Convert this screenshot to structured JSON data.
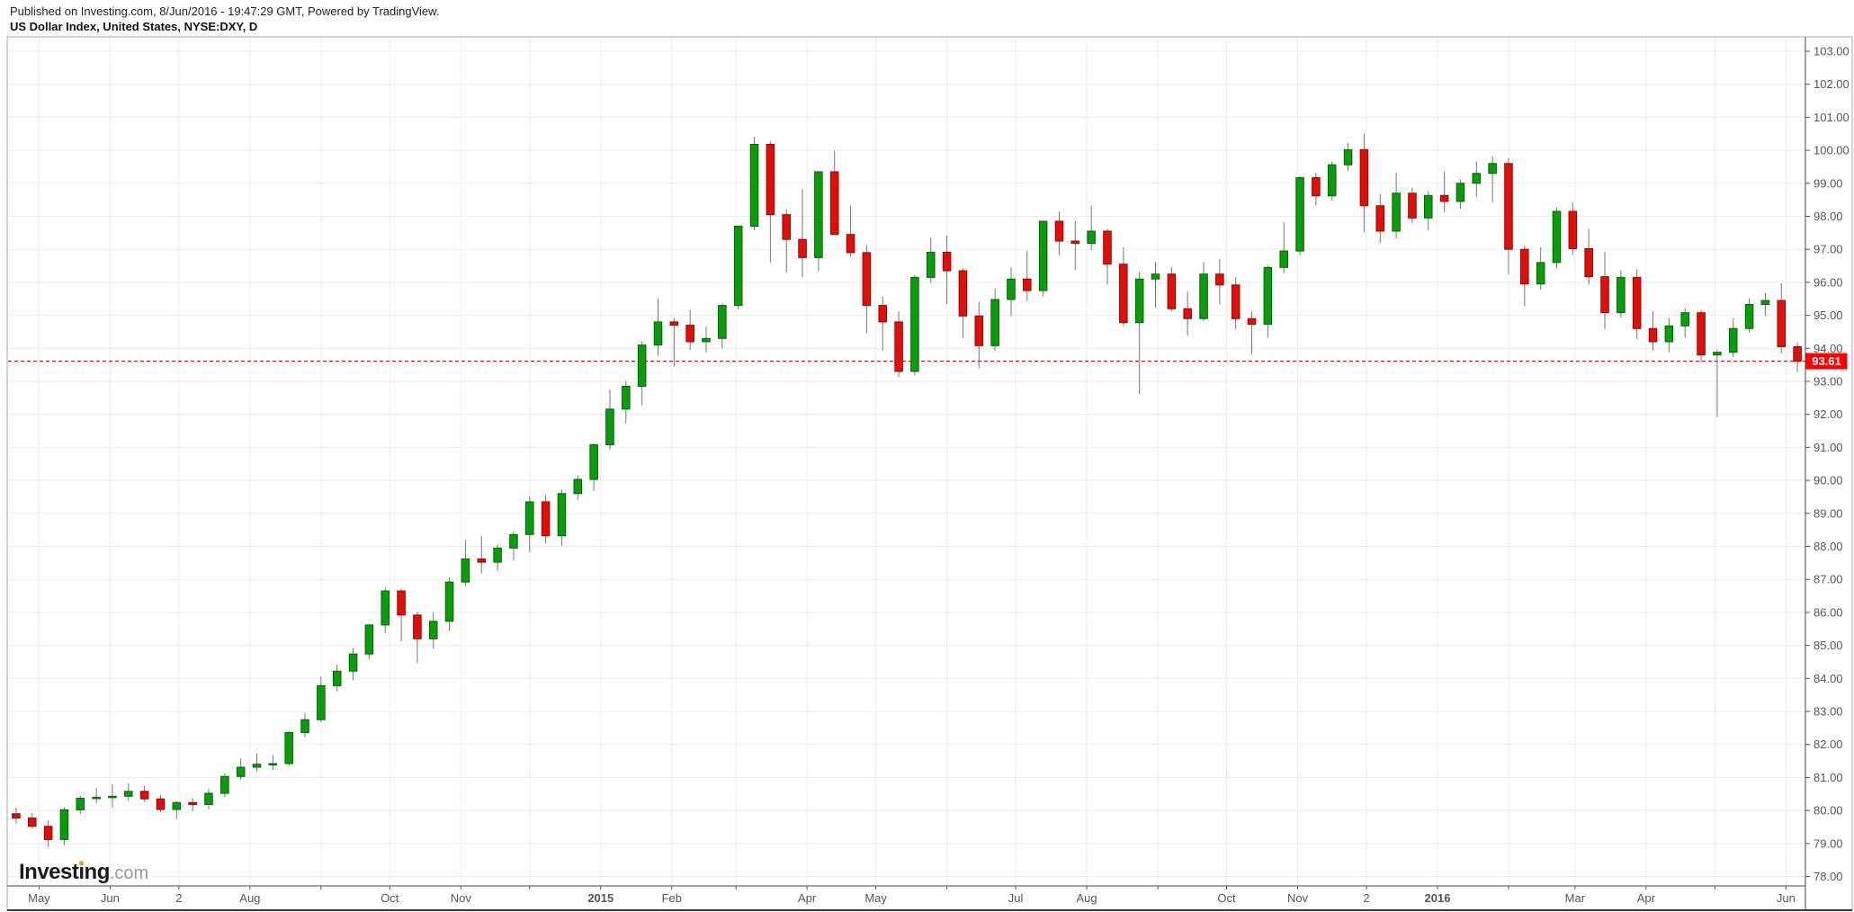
{
  "header": {
    "published_line": "Published on Investing.com, 8/Jun/2016 - 19:47:29 GMT, Powered by TradingView.",
    "instrument_line": "US Dollar Index, United States, NYSE:DXY, D"
  },
  "watermark": {
    "pre": "Invest",
    "i": "i",
    "post": "ng",
    "suffix": ".com"
  },
  "price_axis": {
    "ticks": [
      "103.00",
      "102.00",
      "101.00",
      "100.00",
      "99.00",
      "98.00",
      "97.00",
      "96.00",
      "95.00",
      "94.00",
      "93.00",
      "92.00",
      "91.00",
      "90.00",
      "89.00",
      "88.00",
      "87.00",
      "86.00",
      "85.00",
      "84.00",
      "83.00",
      "82.00",
      "81.00",
      "80.00",
      "79.00",
      "78.00"
    ],
    "min": 78,
    "max": 103,
    "step": 1
  },
  "last_price": {
    "label": "93.61",
    "value": 93.61
  },
  "time_axis": {
    "months": [
      {
        "d": "2014-05-01",
        "label": "May",
        "bold": false
      },
      {
        "d": "2014-06-01",
        "label": "Jun",
        "bold": false
      },
      {
        "d": "2014-07-01",
        "label": "2",
        "bold": false
      },
      {
        "d": "2014-08-01",
        "label": "Aug",
        "bold": false
      },
      {
        "d": "2014-09-01",
        "label": "",
        "bold": false
      },
      {
        "d": "2014-10-01",
        "label": "Oct",
        "bold": false
      },
      {
        "d": "2014-11-01",
        "label": "Nov",
        "bold": false
      },
      {
        "d": "2014-12-01",
        "label": "",
        "bold": false
      },
      {
        "d": "2015-01-01",
        "label": "2015",
        "bold": true
      },
      {
        "d": "2015-02-01",
        "label": "Feb",
        "bold": false
      },
      {
        "d": "2015-03-01",
        "label": "",
        "bold": false
      },
      {
        "d": "2015-04-01",
        "label": "Apr",
        "bold": false
      },
      {
        "d": "2015-05-01",
        "label": "May",
        "bold": false
      },
      {
        "d": "2015-06-01",
        "label": "",
        "bold": false
      },
      {
        "d": "2015-07-01",
        "label": "Jul",
        "bold": false
      },
      {
        "d": "2015-08-01",
        "label": "Aug",
        "bold": false
      },
      {
        "d": "2015-09-01",
        "label": "",
        "bold": false
      },
      {
        "d": "2015-10-01",
        "label": "Oct",
        "bold": false
      },
      {
        "d": "2015-11-01",
        "label": "Nov",
        "bold": false
      },
      {
        "d": "2015-12-01",
        "label": "2",
        "bold": false
      },
      {
        "d": "2016-01-01",
        "label": "2016",
        "bold": true
      },
      {
        "d": "2016-02-01",
        "label": "",
        "bold": false
      },
      {
        "d": "2016-03-01",
        "label": "Mar",
        "bold": false
      },
      {
        "d": "2016-04-01",
        "label": "Apr",
        "bold": false
      },
      {
        "d": "2016-05-01",
        "label": "",
        "bold": false
      },
      {
        "d": "2016-06-01",
        "label": "Jun",
        "bold": false
      }
    ]
  },
  "colors": {
    "background": "#ffffff",
    "grid": "#ececec",
    "axis_line": "#4a4a4a",
    "frame": "#a9a9a9",
    "axis_text": "#565656",
    "up_fill": "#0b9c0b",
    "up_stroke": "#056605",
    "down_fill": "#e01008",
    "down_stroke": "#8f0a04",
    "wick": "#777777",
    "last_price_bg": "#ff0000",
    "last_price_text": "#ffffff",
    "dashed_line": "#ff0000",
    "logo_dot": "#f49d25"
  },
  "chart_data": {
    "type": "candlestick",
    "title": "US Dollar Index, United States, NYSE:DXY, D",
    "symbol": "NYSE:DXY",
    "timeframe_shown": "daily bars, Apr 2014 - 8 Jun 2016 (values estimated at weekly resolution)",
    "x_start": "2014-04-21",
    "x_end": "2016-06-08",
    "ylim": [
      77.7,
      103.2
    ],
    "y_gridlines": "every 1.00",
    "last_close": 93.61,
    "columns": [
      "week_start",
      "open",
      "high",
      "low",
      "close"
    ],
    "rows": [
      [
        "2014-04-21",
        79.9,
        80.08,
        79.6,
        79.77
      ],
      [
        "2014-04-28",
        79.77,
        79.92,
        79.45,
        79.52
      ],
      [
        "2014-05-05",
        79.52,
        79.7,
        78.9,
        79.12
      ],
      [
        "2014-05-12",
        79.12,
        80.1,
        78.95,
        80.02
      ],
      [
        "2014-05-19",
        80.02,
        80.44,
        79.88,
        80.37
      ],
      [
        "2014-05-26",
        80.37,
        80.68,
        80.22,
        80.4
      ],
      [
        "2014-06-02",
        80.4,
        80.8,
        80.08,
        80.43
      ],
      [
        "2014-06-09",
        80.43,
        80.82,
        80.3,
        80.58
      ],
      [
        "2014-06-16",
        80.58,
        80.75,
        80.26,
        80.35
      ],
      [
        "2014-06-23",
        80.35,
        80.48,
        79.95,
        80.03
      ],
      [
        "2014-06-30",
        80.03,
        80.28,
        79.74,
        80.24
      ],
      [
        "2014-07-07",
        80.24,
        80.38,
        79.98,
        80.18
      ],
      [
        "2014-07-14",
        80.18,
        80.66,
        80.04,
        80.52
      ],
      [
        "2014-07-21",
        80.52,
        81.12,
        80.4,
        81.03
      ],
      [
        "2014-07-28",
        81.03,
        81.58,
        80.93,
        81.31
      ],
      [
        "2014-08-04",
        81.31,
        81.72,
        81.18,
        81.4
      ],
      [
        "2014-08-11",
        81.4,
        81.68,
        81.22,
        81.42
      ],
      [
        "2014-08-18",
        81.42,
        82.4,
        81.36,
        82.36
      ],
      [
        "2014-08-25",
        82.36,
        82.94,
        82.22,
        82.75
      ],
      [
        "2014-09-01",
        82.75,
        84.05,
        82.68,
        83.78
      ],
      [
        "2014-09-08",
        83.78,
        84.42,
        83.6,
        84.22
      ],
      [
        "2014-09-15",
        84.22,
        84.92,
        83.94,
        84.74
      ],
      [
        "2014-09-22",
        84.74,
        85.66,
        84.58,
        85.62
      ],
      [
        "2014-09-29",
        85.62,
        86.75,
        85.38,
        86.65
      ],
      [
        "2014-10-06",
        86.65,
        86.72,
        85.12,
        85.92
      ],
      [
        "2014-10-13",
        85.92,
        86.02,
        84.47,
        85.2
      ],
      [
        "2014-10-20",
        85.2,
        86.0,
        84.9,
        85.73
      ],
      [
        "2014-10-27",
        85.73,
        87.06,
        85.44,
        86.92
      ],
      [
        "2014-11-03",
        86.92,
        88.19,
        86.78,
        87.62
      ],
      [
        "2014-11-10",
        87.62,
        88.32,
        87.18,
        87.52
      ],
      [
        "2014-11-17",
        87.52,
        88.06,
        87.26,
        87.95
      ],
      [
        "2014-11-24",
        87.95,
        88.46,
        87.58,
        88.36
      ],
      [
        "2014-12-01",
        88.36,
        89.52,
        87.82,
        89.35
      ],
      [
        "2014-12-08",
        89.35,
        89.56,
        88.08,
        88.32
      ],
      [
        "2014-12-15",
        88.32,
        89.72,
        88.02,
        89.6
      ],
      [
        "2014-12-22",
        89.6,
        90.16,
        89.42,
        90.03
      ],
      [
        "2014-12-29",
        90.03,
        91.12,
        89.68,
        91.08
      ],
      [
        "2015-01-05",
        91.08,
        92.76,
        90.92,
        92.16
      ],
      [
        "2015-01-12",
        92.16,
        93.02,
        91.72,
        92.85
      ],
      [
        "2015-01-19",
        92.85,
        94.22,
        92.28,
        94.1
      ],
      [
        "2015-01-26",
        94.1,
        95.52,
        93.78,
        94.8
      ],
      [
        "2015-02-02",
        94.8,
        94.92,
        93.45,
        94.7
      ],
      [
        "2015-02-09",
        94.7,
        95.16,
        93.95,
        94.2
      ],
      [
        "2015-02-16",
        94.2,
        94.66,
        93.88,
        94.3
      ],
      [
        "2015-02-23",
        94.3,
        95.36,
        94.0,
        95.3
      ],
      [
        "2015-03-02",
        95.3,
        97.72,
        95.18,
        97.7
      ],
      [
        "2015-03-09",
        97.7,
        100.4,
        97.58,
        100.18
      ],
      [
        "2015-03-16",
        100.18,
        100.28,
        96.6,
        98.05
      ],
      [
        "2015-03-23",
        98.05,
        98.22,
        96.3,
        97.3
      ],
      [
        "2015-03-30",
        97.3,
        98.82,
        96.15,
        96.75
      ],
      [
        "2015-04-06",
        96.75,
        99.32,
        96.33,
        99.35
      ],
      [
        "2015-04-13",
        99.35,
        99.99,
        97.58,
        97.45
      ],
      [
        "2015-04-20",
        97.45,
        98.32,
        96.78,
        96.9
      ],
      [
        "2015-04-27",
        96.9,
        97.12,
        94.45,
        95.3
      ],
      [
        "2015-05-04",
        95.3,
        95.56,
        93.93,
        94.8
      ],
      [
        "2015-05-11",
        94.8,
        95.12,
        93.13,
        93.3
      ],
      [
        "2015-05-18",
        93.3,
        96.22,
        93.18,
        96.15
      ],
      [
        "2015-05-25",
        96.15,
        97.36,
        95.98,
        96.91
      ],
      [
        "2015-06-01",
        96.91,
        97.42,
        95.35,
        96.35
      ],
      [
        "2015-06-08",
        96.35,
        96.42,
        94.3,
        94.98
      ],
      [
        "2015-06-15",
        94.98,
        95.42,
        93.4,
        94.08
      ],
      [
        "2015-06-22",
        94.08,
        95.82,
        93.93,
        95.48
      ],
      [
        "2015-06-29",
        95.48,
        96.46,
        94.98,
        96.1
      ],
      [
        "2015-07-06",
        96.1,
        96.96,
        95.44,
        95.75
      ],
      [
        "2015-07-13",
        95.75,
        97.86,
        95.58,
        97.85
      ],
      [
        "2015-07-20",
        97.85,
        98.15,
        96.83,
        97.25
      ],
      [
        "2015-07-27",
        97.25,
        97.86,
        96.38,
        97.18
      ],
      [
        "2015-08-03",
        97.18,
        98.32,
        96.98,
        97.55
      ],
      [
        "2015-08-10",
        97.55,
        97.62,
        95.93,
        96.55
      ],
      [
        "2015-08-17",
        96.55,
        97.06,
        94.68,
        94.78
      ],
      [
        "2015-08-24",
        94.78,
        96.32,
        92.62,
        96.1
      ],
      [
        "2015-08-31",
        96.1,
        96.62,
        95.23,
        96.25
      ],
      [
        "2015-09-07",
        96.25,
        96.46,
        95.12,
        95.2
      ],
      [
        "2015-09-14",
        95.2,
        95.72,
        94.38,
        94.9
      ],
      [
        "2015-09-21",
        94.9,
        96.62,
        94.83,
        96.25
      ],
      [
        "2015-09-28",
        96.25,
        96.7,
        95.33,
        95.92
      ],
      [
        "2015-10-05",
        95.92,
        96.16,
        94.58,
        94.9
      ],
      [
        "2015-10-12",
        94.9,
        95.12,
        93.81,
        94.73
      ],
      [
        "2015-10-19",
        94.73,
        96.52,
        94.33,
        96.45
      ],
      [
        "2015-10-26",
        96.45,
        97.82,
        96.28,
        96.95
      ],
      [
        "2015-11-02",
        96.95,
        99.22,
        96.83,
        99.17
      ],
      [
        "2015-11-09",
        99.17,
        99.32,
        98.33,
        98.62
      ],
      [
        "2015-11-16",
        98.62,
        99.66,
        98.48,
        99.56
      ],
      [
        "2015-11-23",
        99.56,
        100.22,
        99.38,
        100.02
      ],
      [
        "2015-11-30",
        100.02,
        100.51,
        97.53,
        98.32
      ],
      [
        "2015-12-07",
        98.32,
        98.66,
        97.18,
        97.55
      ],
      [
        "2015-12-14",
        97.55,
        99.32,
        97.33,
        98.7
      ],
      [
        "2015-12-21",
        98.7,
        98.86,
        97.78,
        97.95
      ],
      [
        "2015-12-28",
        97.95,
        98.76,
        97.58,
        98.63
      ],
      [
        "2016-01-04",
        98.63,
        99.36,
        98.13,
        98.45
      ],
      [
        "2016-01-11",
        98.45,
        99.12,
        98.23,
        99.0
      ],
      [
        "2016-01-18",
        99.0,
        99.66,
        98.58,
        99.3
      ],
      [
        "2016-01-25",
        99.3,
        99.82,
        98.43,
        99.6
      ],
      [
        "2016-02-01",
        99.6,
        99.76,
        96.25,
        97.0
      ],
      [
        "2016-02-08",
        97.0,
        97.12,
        95.27,
        95.95
      ],
      [
        "2016-02-15",
        95.95,
        97.06,
        95.78,
        96.6
      ],
      [
        "2016-02-22",
        96.6,
        98.26,
        96.43,
        98.15
      ],
      [
        "2016-02-29",
        98.15,
        98.42,
        96.83,
        97.02
      ],
      [
        "2016-03-07",
        97.02,
        97.62,
        95.93,
        96.17
      ],
      [
        "2016-03-14",
        96.17,
        96.92,
        94.58,
        95.08
      ],
      [
        "2016-03-21",
        95.08,
        96.36,
        94.93,
        96.15
      ],
      [
        "2016-03-28",
        96.15,
        96.4,
        94.28,
        94.6
      ],
      [
        "2016-04-04",
        94.6,
        95.12,
        93.93,
        94.2
      ],
      [
        "2016-04-11",
        94.2,
        94.92,
        93.88,
        94.68
      ],
      [
        "2016-04-18",
        94.68,
        95.22,
        94.33,
        95.08
      ],
      [
        "2016-04-25",
        95.08,
        95.16,
        93.58,
        93.8
      ],
      [
        "2016-05-02",
        93.8,
        93.96,
        91.92,
        93.88
      ],
      [
        "2016-05-09",
        93.88,
        94.92,
        93.73,
        94.6
      ],
      [
        "2016-05-16",
        94.6,
        95.52,
        94.48,
        95.33
      ],
      [
        "2016-05-23",
        95.33,
        95.68,
        94.98,
        95.45
      ],
      [
        "2016-05-30",
        95.45,
        95.97,
        93.85,
        94.05
      ],
      [
        "2016-06-06",
        94.05,
        94.18,
        93.28,
        93.61
      ]
    ]
  }
}
